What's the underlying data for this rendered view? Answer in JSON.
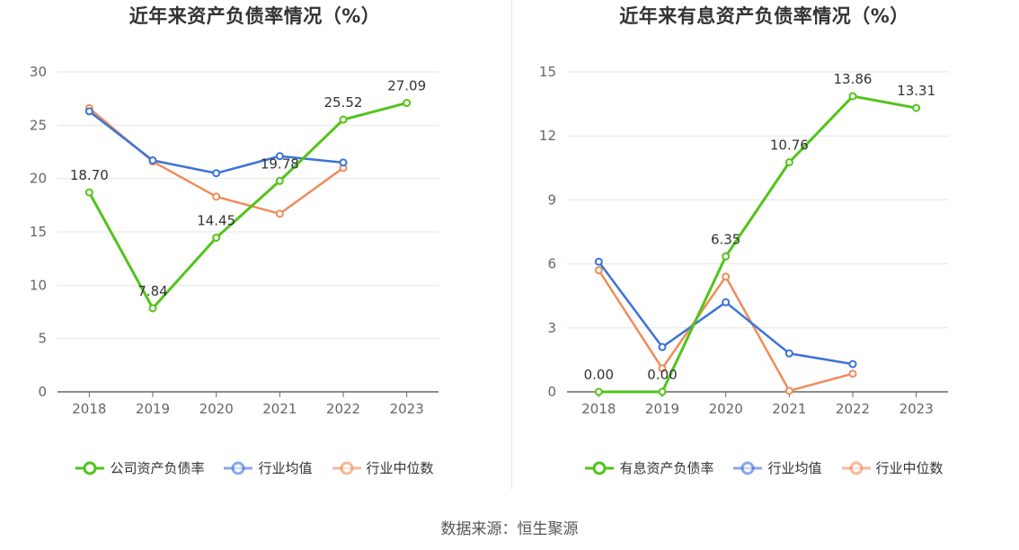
{
  "source_text": "数据来源：恒生聚源",
  "colors": {
    "company": "#52c41a",
    "industry_avg": "#3b73d9",
    "industry_median": "#f08c5a",
    "axis": "#666666",
    "grid": "#e6e6e6",
    "label": "#333333",
    "tick": "#666666"
  },
  "chart_data": [
    {
      "type": "line",
      "title": "近年来资产负债率情况（%）",
      "categories": [
        "2018",
        "2019",
        "2020",
        "2021",
        "2022",
        "2023"
      ],
      "ylim": [
        0,
        30
      ],
      "yticks": [
        0,
        5,
        10,
        15,
        20,
        25,
        30
      ],
      "grid": true,
      "legend_position": "bottom",
      "series": [
        {
          "name": "公司资产负债率",
          "key": "company",
          "values": [
            18.7,
            7.84,
            14.45,
            19.78,
            25.52,
            27.09
          ],
          "labels": [
            "18.70",
            "7.84",
            "14.45",
            "19.78",
            "25.52",
            "27.09"
          ]
        },
        {
          "name": "行业均值",
          "key": "industry_avg",
          "values": [
            26.3,
            21.7,
            20.5,
            22.1,
            21.5,
            null
          ]
        },
        {
          "name": "行业中位数",
          "key": "industry_median",
          "values": [
            26.6,
            21.6,
            18.3,
            16.7,
            21.0,
            null
          ]
        }
      ]
    },
    {
      "type": "line",
      "title": "近年来有息资产负债率情况（%）",
      "categories": [
        "2018",
        "2019",
        "2020",
        "2021",
        "2022",
        "2023"
      ],
      "ylim": [
        0,
        15
      ],
      "yticks": [
        0,
        3,
        6,
        9,
        12,
        15
      ],
      "grid": true,
      "legend_position": "bottom",
      "series": [
        {
          "name": "有息资产负债率",
          "key": "company",
          "values": [
            0.0,
            0.0,
            6.35,
            10.76,
            13.86,
            13.31
          ],
          "labels": [
            "0.00",
            "0.00",
            "6.35",
            "10.76",
            "13.86",
            "13.31"
          ]
        },
        {
          "name": "行业均值",
          "key": "industry_avg",
          "values": [
            6.1,
            2.1,
            4.2,
            1.8,
            1.3,
            null
          ]
        },
        {
          "name": "行业中位数",
          "key": "industry_median",
          "values": [
            5.7,
            1.1,
            5.4,
            0.05,
            0.85,
            null
          ]
        }
      ]
    }
  ]
}
